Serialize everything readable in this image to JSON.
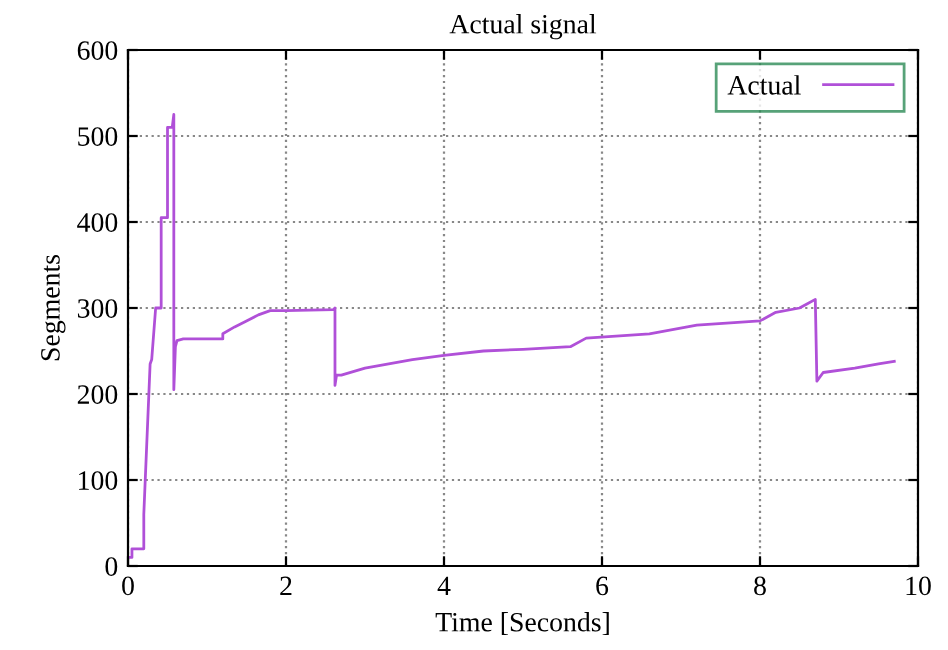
{
  "chart_data": {
    "type": "line",
    "title": "Actual signal",
    "xlabel": "Time [Seconds]",
    "ylabel": "Segments",
    "xlim": [
      0,
      10
    ],
    "ylim": [
      0,
      600
    ],
    "xticks": [
      0,
      2,
      4,
      6,
      8,
      10
    ],
    "yticks": [
      0,
      100,
      200,
      300,
      400,
      500,
      600
    ],
    "grid": true,
    "legend": "top right",
    "line_style": "solid",
    "marker": "none",
    "series": [
      {
        "name": "Actual",
        "color": "#b050d8",
        "x": [
          0,
          0.05,
          0.05,
          0.2,
          0.2,
          0.28,
          0.3,
          0.35,
          0.42,
          0.42,
          0.5,
          0.5,
          0.56,
          0.58,
          0.58,
          0.6,
          0.62,
          0.7,
          1.2,
          1.2,
          1.35,
          1.5,
          1.65,
          1.8,
          2.0,
          2.6,
          2.62,
          2.62,
          2.64,
          2.7,
          3.0,
          3.3,
          3.6,
          4.0,
          4.5,
          5.0,
          5.6,
          5.8,
          6.6,
          7.2,
          8.0,
          8.2,
          8.5,
          8.6,
          8.7,
          8.72,
          8.8,
          9.2,
          9.5,
          9.7
        ],
        "values": [
          10,
          10,
          20,
          20,
          60,
          235,
          240,
          300,
          300,
          405,
          405,
          510,
          510,
          525,
          205,
          255,
          262,
          264,
          264,
          270,
          278,
          285,
          292,
          297,
          297,
          298,
          300,
          210,
          222,
          222,
          230,
          235,
          240,
          245,
          250,
          252,
          255,
          265,
          270,
          280,
          285,
          295,
          300,
          305,
          310,
          215,
          225,
          230,
          235,
          238
        ]
      }
    ]
  }
}
